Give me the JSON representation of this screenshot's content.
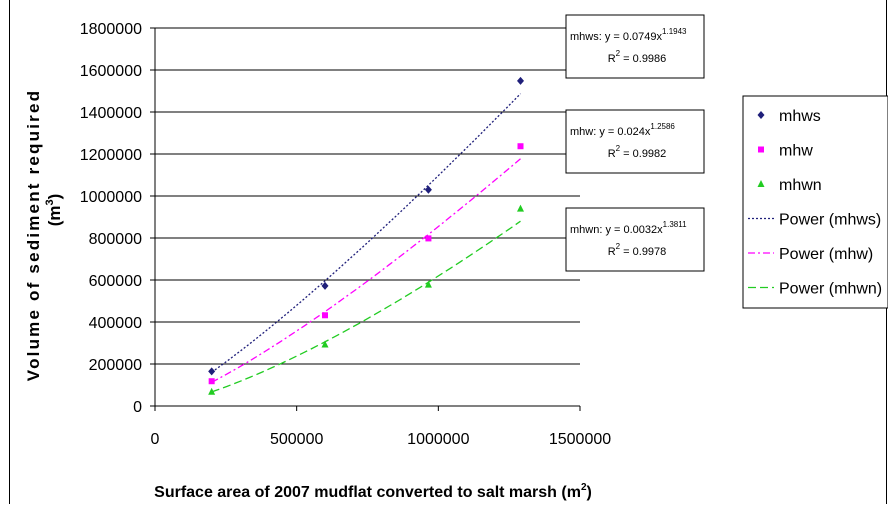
{
  "chart_data": {
    "type": "scatter",
    "xlabel": "Surface area of 2007 mudflat converted to salt marsh (m",
    "xlabel_sup": "2",
    "xlabel_end": ")",
    "ylabel_line1": "Volume of sediment required",
    "ylabel_line2": "(m",
    "ylabel_sup": "3",
    "ylabel_end": ")",
    "xlim": [
      0,
      1500000
    ],
    "ylim": [
      0,
      1800000
    ],
    "xticks": [
      "0",
      "500000",
      "1000000",
      "1500000"
    ],
    "yticks": [
      "0",
      "200000",
      "400000",
      "600000",
      "800000",
      "1000000",
      "1200000",
      "1400000",
      "1600000",
      "1800000"
    ],
    "grid": "horizontal",
    "legend_position": "right",
    "series": [
      {
        "name": "mhws",
        "color": "#1f1f7a",
        "marker": "diamond",
        "x": [
          200000,
          600000,
          965000,
          1290000
        ],
        "y": [
          165000,
          572000,
          1030000,
          1548000
        ],
        "trend": {
          "name": "Power (mhws)",
          "a": 0.0749,
          "b": 1.1943,
          "style": "dotted",
          "color": "#1f1f7a"
        },
        "equation": {
          "label": "mhws: y = 0.0749x",
          "exponent": "1.1943",
          "r2_prefix": "R",
          "r2_sup": "2",
          "r2_value": " = 0.9986"
        }
      },
      {
        "name": "mhw",
        "color": "#ff00ff",
        "marker": "square",
        "x": [
          200000,
          600000,
          965000,
          1290000
        ],
        "y": [
          118000,
          432000,
          798000,
          1237000
        ],
        "trend": {
          "name": "Power (mhw)",
          "a": 0.024,
          "b": 1.2586,
          "style": "dashdot",
          "color": "#ff00ff"
        },
        "equation": {
          "label": "mhw: y = 0.024x",
          "exponent": "1.2586",
          "r2_prefix": "R",
          "r2_sup": "2",
          "r2_value": " = 0.9982"
        }
      },
      {
        "name": "mhwn",
        "color": "#22cc22",
        "marker": "triangle",
        "x": [
          200000,
          600000,
          965000,
          1290000
        ],
        "y": [
          68000,
          293000,
          578000,
          940000
        ],
        "trend": {
          "name": "Power (mhwn)",
          "a": 0.0032,
          "b": 1.3811,
          "style": "dashed",
          "color": "#22cc22"
        },
        "equation": {
          "label": "mhwn: y = 0.0032x",
          "exponent": "1.3811",
          "r2_prefix": "R",
          "r2_sup": "2",
          "r2_value": " = 0.9978"
        }
      }
    ]
  }
}
